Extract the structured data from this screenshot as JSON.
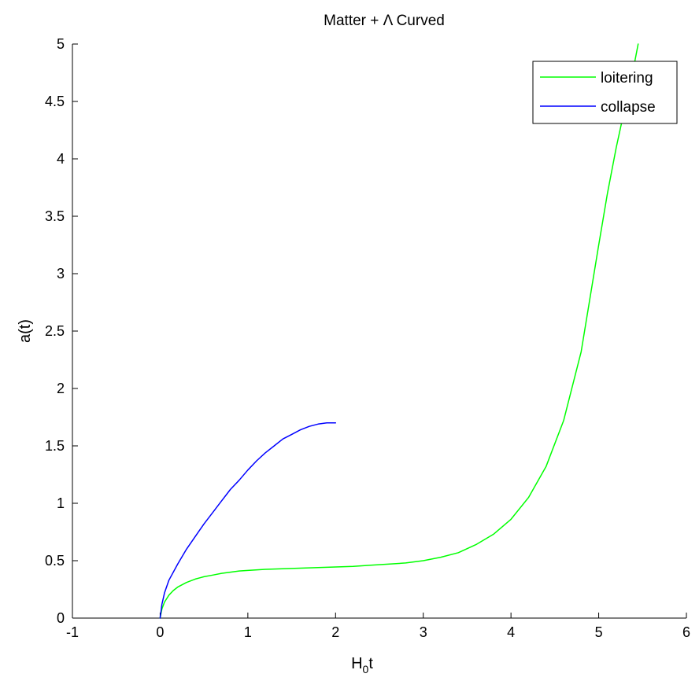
{
  "chart_data": {
    "type": "line",
    "title": "Matter + Λ Curved",
    "xlabel": "H0t",
    "xlabel_main": "H",
    "xlabel_sub": "0",
    "xlabel_tail": "t",
    "ylabel": "a(t)",
    "xlim": [
      -1,
      6
    ],
    "ylim": [
      0,
      5
    ],
    "xticks": [
      -1,
      0,
      1,
      2,
      3,
      4,
      5,
      6
    ],
    "xtick_labels": [
      "-1",
      "0",
      "1",
      "2",
      "3",
      "4",
      "5",
      "6"
    ],
    "yticks": [
      0,
      0.5,
      1,
      1.5,
      2,
      2.5,
      3,
      3.5,
      4,
      4.5,
      5
    ],
    "ytick_labels": [
      "0",
      "0.5",
      "1",
      "1.5",
      "2",
      "2.5",
      "3",
      "3.5",
      "4",
      "4.5",
      "5"
    ],
    "grid": false,
    "legend_position": "top-right",
    "series": [
      {
        "name": "loitering",
        "color": "#00ff00",
        "x": [
          0,
          0.02,
          0.05,
          0.1,
          0.15,
          0.2,
          0.3,
          0.4,
          0.5,
          0.6,
          0.7,
          0.8,
          0.9,
          1.0,
          1.2,
          1.4,
          1.6,
          1.8,
          2.0,
          2.2,
          2.4,
          2.6,
          2.8,
          3.0,
          3.2,
          3.4,
          3.6,
          3.8,
          4.0,
          4.2,
          4.4,
          4.6,
          4.8,
          5.0,
          5.1,
          5.2,
          5.3,
          5.35,
          5.4,
          5.45
        ],
        "y": [
          0,
          0.08,
          0.14,
          0.2,
          0.24,
          0.27,
          0.31,
          0.34,
          0.36,
          0.375,
          0.39,
          0.4,
          0.41,
          0.415,
          0.425,
          0.43,
          0.435,
          0.44,
          0.445,
          0.45,
          0.46,
          0.47,
          0.48,
          0.5,
          0.53,
          0.57,
          0.64,
          0.73,
          0.86,
          1.05,
          1.32,
          1.72,
          2.32,
          3.25,
          3.7,
          4.1,
          4.45,
          4.6,
          4.8,
          5.0
        ]
      },
      {
        "name": "collapse",
        "color": "#0000ff",
        "x": [
          0,
          0.02,
          0.05,
          0.1,
          0.2,
          0.3,
          0.4,
          0.5,
          0.6,
          0.7,
          0.8,
          0.9,
          1.0,
          1.1,
          1.2,
          1.3,
          1.4,
          1.5,
          1.6,
          1.7,
          1.8,
          1.9,
          2.0
        ],
        "y": [
          0,
          0.12,
          0.22,
          0.33,
          0.47,
          0.6,
          0.71,
          0.82,
          0.92,
          1.02,
          1.12,
          1.2,
          1.29,
          1.37,
          1.44,
          1.5,
          1.56,
          1.6,
          1.64,
          1.67,
          1.69,
          1.7,
          1.7
        ]
      }
    ]
  }
}
